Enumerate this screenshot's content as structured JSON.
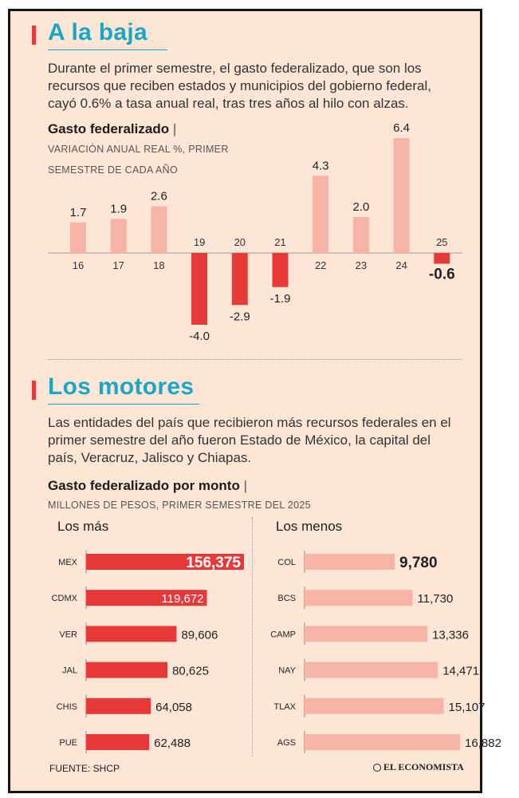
{
  "section1": {
    "title": "A la baja",
    "text": "Durante el primer semestre, el gasto federalizado, que son los recursos que reciben estados y municipios del gobierno federal, cayó 0.6% a tasa anual real, tras tres años al hilo con alzas.",
    "chart_title": "Gasto federalizado",
    "chart_note_1": "VARIACIÓN ANUAL REAL %, PRIMER",
    "chart_note_2": "SEMESTRE DE CADA AÑO"
  },
  "section2": {
    "title": "Los motores",
    "text": "Las entidades del país que recibieron más recursos federales en el primer semestre del año fueron Estado de México, la capital del país, Veracruz, Jalisco y Chiapas.",
    "chart_title": "Gasto federalizado por monto",
    "chart_note": "MILLONES DE PESOS, PRIMER SEMESTRE DEL 2025",
    "col_mas": "Los más",
    "col_menos": "Los menos"
  },
  "separator": "|",
  "colors": {
    "accent": "#1aa7c6",
    "negative": "#e8393a",
    "positive": "#f7b3a6"
  },
  "chart_data": [
    {
      "type": "bar",
      "title": "Gasto federalizado",
      "categories": [
        "16",
        "17",
        "18",
        "19",
        "20",
        "21",
        "22",
        "23",
        "24",
        "25"
      ],
      "values": [
        1.7,
        1.9,
        2.6,
        -4.0,
        -2.9,
        -1.9,
        4.3,
        2.0,
        6.4,
        -0.6
      ],
      "value_labels": [
        "1.7",
        "1.9",
        "2.6",
        "-4.0",
        "-2.9",
        "-1.9",
        "4.3",
        "2.0",
        "6.4",
        "-0.6"
      ]
    },
    {
      "type": "bar",
      "title": "Los más",
      "categories": [
        "MEX",
        "CDMX",
        "VER",
        "JAL",
        "CHIS",
        "PUE"
      ],
      "values": [
        156375,
        119672,
        89606,
        80625,
        64058,
        62488
      ],
      "value_labels": [
        "156,375",
        "119,672",
        "89,606",
        "80,625",
        "64,058",
        "62,488"
      ]
    },
    {
      "type": "bar",
      "title": "Los menos",
      "categories": [
        "COL",
        "BCS",
        "CAMP",
        "NAY",
        "TLAX",
        "AGS"
      ],
      "values": [
        9780,
        11730,
        13336,
        14471,
        15107,
        16882
      ],
      "value_labels": [
        "9,780",
        "11,730",
        "13,336",
        "14,471",
        "15,107",
        "16,882"
      ]
    }
  ],
  "footer": {
    "source": "FUENTE: SHCP",
    "logo": "EL ECONOMISTA",
    "logo_icon": "globe-icon"
  }
}
